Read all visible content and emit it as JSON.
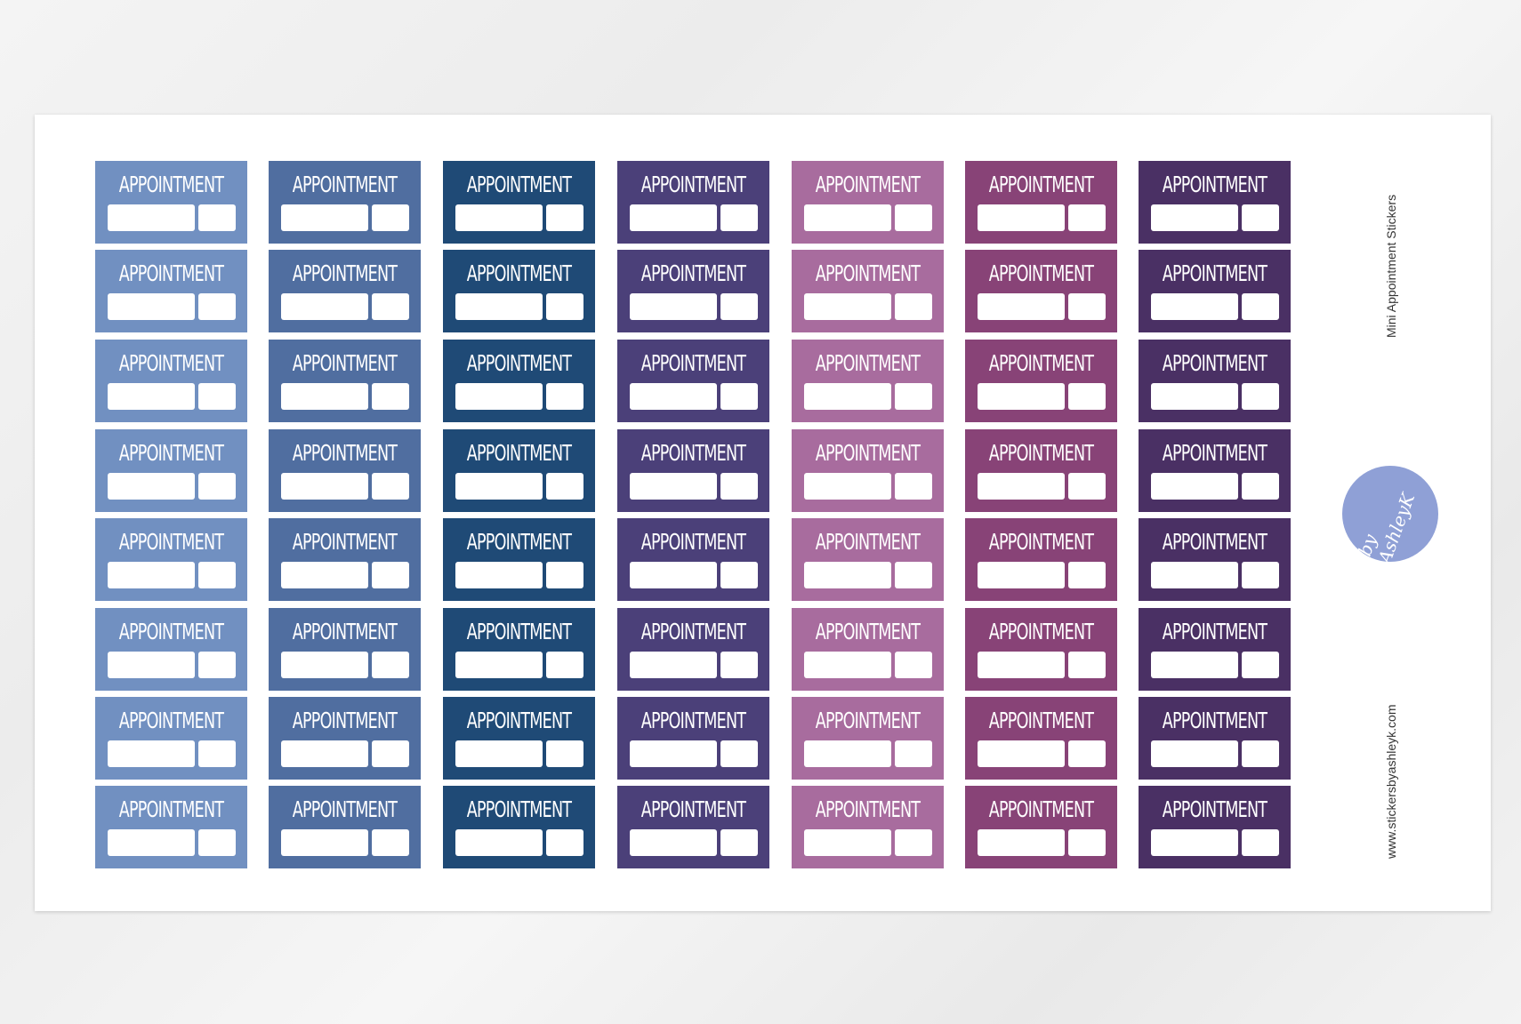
{
  "sheet": {
    "title": "Mini Appointment Stickers",
    "website": "www.stickersbyashleyk.com",
    "logo_text": "by AshleyK"
  },
  "sticker_label": "APPOINTMENT",
  "rows": 8,
  "column_colors": [
    "#7190c1",
    "#506ea0",
    "#1f4a76",
    "#4b4079",
    "#a86c9e",
    "#884377",
    "#4a3064"
  ]
}
